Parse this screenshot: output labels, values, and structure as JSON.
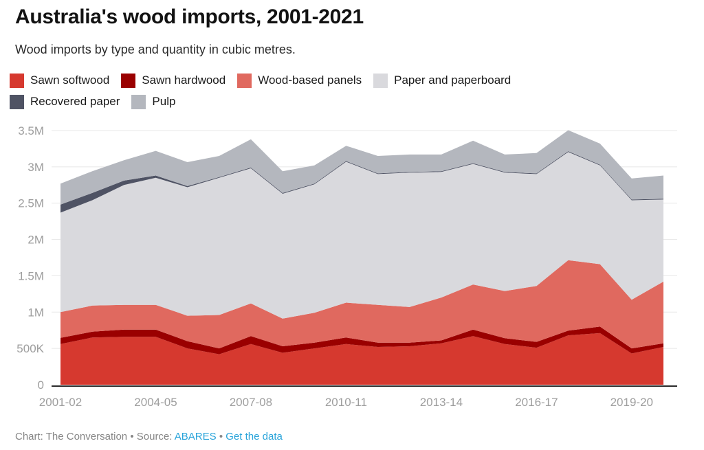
{
  "header": {
    "title": "Australia's wood imports, 2001-2021",
    "subtitle": "Wood imports by type and quantity in cubic metres."
  },
  "footer": {
    "credit": "Chart: The Conversation",
    "separator1": "•",
    "source_label": "Source:",
    "source_link": "ABARES",
    "separator2": "•",
    "data_link": "Get the data"
  },
  "colors": {
    "link_blue": "#29a4da",
    "axis_label_gray": "#9e9e9e",
    "gridline_gray": "#e7e7e7",
    "baseline_dark": "#2b2b2b"
  },
  "chart_data": {
    "type": "area",
    "stacked": true,
    "title": "Australia's wood imports, 2001-2021",
    "xlabel": "",
    "ylabel": "cubic metres",
    "ylim": [
      0,
      3500000
    ],
    "grid": "horizontal",
    "legend_position": "top",
    "x": [
      "2001-02",
      "2002-03",
      "2003-04",
      "2004-05",
      "2005-06",
      "2006-07",
      "2007-08",
      "2008-09",
      "2009-10",
      "2010-11",
      "2011-12",
      "2012-13",
      "2013-14",
      "2014-15",
      "2015-16",
      "2016-17",
      "2017-18",
      "2018-19",
      "2019-20",
      "2020-21"
    ],
    "x_ticks": [
      {
        "index": 0,
        "label": "2001-02"
      },
      {
        "index": 3,
        "label": "2004-05"
      },
      {
        "index": 6,
        "label": "2007-08"
      },
      {
        "index": 9,
        "label": "2010-11"
      },
      {
        "index": 12,
        "label": "2013-14"
      },
      {
        "index": 15,
        "label": "2016-17"
      },
      {
        "index": 18,
        "label": "2019-20"
      }
    ],
    "y_ticks": [
      {
        "value": 0,
        "label": "0"
      },
      {
        "value": 500000,
        "label": "500K"
      },
      {
        "value": 1000000,
        "label": "1M"
      },
      {
        "value": 1500000,
        "label": "1.5M"
      },
      {
        "value": 2000000,
        "label": "2M"
      },
      {
        "value": 2500000,
        "label": "2.5M"
      },
      {
        "value": 3000000,
        "label": "3M"
      },
      {
        "value": 3500000,
        "label": "3.5M"
      }
    ],
    "series": [
      {
        "id": "sawn-softwood",
        "name": "Sawn softwood",
        "color": "#d6392f",
        "values": [
          560000,
          650000,
          660000,
          660000,
          500000,
          420000,
          560000,
          440000,
          500000,
          560000,
          520000,
          530000,
          570000,
          670000,
          560000,
          510000,
          680000,
          710000,
          430000,
          520000
        ]
      },
      {
        "id": "sawn-hardwood",
        "name": "Sawn hardwood",
        "color": "#9a0000",
        "values": [
          85000,
          80000,
          100000,
          100000,
          100000,
          80000,
          110000,
          90000,
          80000,
          90000,
          60000,
          50000,
          40000,
          90000,
          80000,
          80000,
          65000,
          90000,
          70000,
          50000
        ]
      },
      {
        "id": "wood-based-panels",
        "name": "Wood-based panels",
        "color": "#e0695f",
        "values": [
          355000,
          360000,
          340000,
          340000,
          350000,
          460000,
          450000,
          380000,
          410000,
          480000,
          520000,
          490000,
          590000,
          620000,
          650000,
          770000,
          970000,
          860000,
          670000,
          850000
        ]
      },
      {
        "id": "paper-and-paperboard",
        "name": "Paper and paperboard",
        "color": "#d9d9dd",
        "values": [
          1370000,
          1450000,
          1650000,
          1750000,
          1770000,
          1890000,
          1860000,
          1720000,
          1770000,
          1940000,
          1800000,
          1850000,
          1730000,
          1660000,
          1630000,
          1540000,
          1490000,
          1360000,
          1370000,
          1130000
        ]
      },
      {
        "id": "recovered-paper",
        "name": "Recovered paper",
        "color": "#4f5364",
        "values": [
          110000,
          100000,
          60000,
          30000,
          15000,
          10000,
          10000,
          10000,
          10000,
          10000,
          10000,
          10000,
          10000,
          10000,
          10000,
          10000,
          10000,
          10000,
          10000,
          10000
        ]
      },
      {
        "id": "pulp",
        "name": "Pulp",
        "color": "#b4b7be",
        "values": [
          290000,
          300000,
          280000,
          340000,
          330000,
          290000,
          390000,
          300000,
          250000,
          210000,
          240000,
          240000,
          230000,
          310000,
          240000,
          280000,
          290000,
          290000,
          290000,
          320000
        ]
      }
    ]
  }
}
